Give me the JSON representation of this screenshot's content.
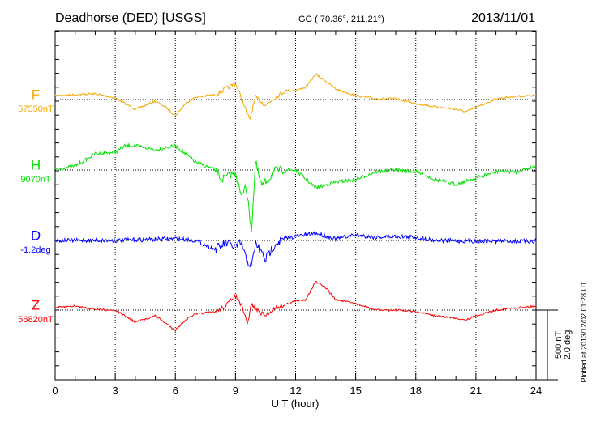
{
  "header": {
    "station": "Deadhorse (DED)  [USGS]",
    "coords": "GG ( 70.36°, 211.21°)",
    "date": "2013/11/01"
  },
  "footer": {
    "plotted": "Plotted at 2013/12/02 01:28 UT"
  },
  "chart_data": {
    "type": "line",
    "xlabel": "U T (hour)",
    "xlim": [
      0,
      24
    ],
    "xticks": [
      "0",
      "3",
      "6",
      "9",
      "12",
      "15",
      "18",
      "21",
      "24"
    ],
    "scale_bar": {
      "nT": "500 nT",
      "deg": "2.0 deg",
      "nT_value": 500,
      "deg_value": 2.0
    },
    "grid": true,
    "series": [
      {
        "name": "F",
        "baseline_label": "57550nT",
        "baseline": 57550,
        "unit": "nT",
        "color": "#f5a800",
        "x": [
          0,
          1,
          2,
          3,
          4,
          5,
          5.5,
          6,
          6.5,
          7,
          8,
          8.5,
          9,
          9.2,
          9.5,
          9.7,
          10,
          10.5,
          11,
          11.5,
          12,
          12.5,
          13,
          13.5,
          14,
          15,
          16,
          17,
          18,
          19,
          20,
          20.5,
          21,
          22,
          23,
          24
        ],
        "values": [
          29,
          35,
          41,
          12,
          -70,
          -12,
          -52,
          -116,
          -29,
          17,
          35,
          75,
          116,
          46,
          -70,
          -145,
          17,
          -41,
          17,
          64,
          64,
          87,
          180,
          133,
          75,
          29,
          6,
          6,
          -29,
          -52,
          -70,
          -87,
          -58,
          6,
          23,
          29
        ]
      },
      {
        "name": "H",
        "baseline_label": "9070nT",
        "baseline": 9070,
        "unit": "nT",
        "color": "#00e000",
        "x": [
          0,
          1,
          2,
          3,
          3.5,
          4,
          5,
          6,
          6.5,
          7,
          8,
          8.3,
          9,
          9.3,
          9.5,
          9.8,
          10,
          10.3,
          10.7,
          11,
          12,
          13,
          14,
          15,
          16,
          17,
          18,
          19,
          20,
          21,
          22,
          23,
          24
        ],
        "values": [
          0,
          29,
          116,
          128,
          174,
          174,
          145,
          174,
          116,
          58,
          0,
          -70,
          -12,
          -203,
          -87,
          -435,
          58,
          -116,
          -58,
          0,
          0,
          -128,
          -87,
          -70,
          -12,
          0,
          -12,
          -70,
          -104,
          -58,
          -12,
          -12,
          29
        ]
      },
      {
        "name": "D",
        "baseline_label": "-1.2deg",
        "baseline": -1.2,
        "unit": "deg",
        "color": "#0000ff",
        "x": [
          0,
          3,
          6,
          7,
          8,
          8.5,
          9,
          9.3,
          9.5,
          9.8,
          10,
          10.5,
          11,
          11.5,
          12,
          13,
          14,
          15,
          16,
          17,
          18,
          19,
          21,
          24
        ],
        "values": [
          0,
          0,
          0.05,
          0,
          -0.26,
          -0.07,
          -0.19,
          -0.07,
          -0.49,
          -0.77,
          -0.07,
          -0.54,
          -0.07,
          0.05,
          0.12,
          0.21,
          0.05,
          0.16,
          0.09,
          0.12,
          0.09,
          0,
          -0.02,
          -0.02
        ]
      },
      {
        "name": "Z",
        "baseline_label": "56820nT",
        "baseline": 56820,
        "unit": "nT",
        "color": "#ff0000",
        "x": [
          0,
          1,
          2,
          3,
          4,
          5,
          6,
          6.5,
          7,
          8,
          8.5,
          9,
          9.3,
          9.6,
          9.8,
          10,
          10.5,
          11,
          12,
          12.5,
          13,
          13.5,
          14,
          15,
          16,
          17,
          18,
          19,
          20,
          20.5,
          21,
          22,
          23,
          24
        ],
        "values": [
          17,
          29,
          6,
          0,
          -87,
          -41,
          -145,
          -70,
          -29,
          -12,
          29,
          104,
          29,
          -99,
          46,
          6,
          -41,
          17,
          64,
          75,
          203,
          162,
          75,
          46,
          0,
          0,
          -12,
          -41,
          -58,
          -70,
          -41,
          0,
          17,
          29
        ]
      }
    ]
  }
}
